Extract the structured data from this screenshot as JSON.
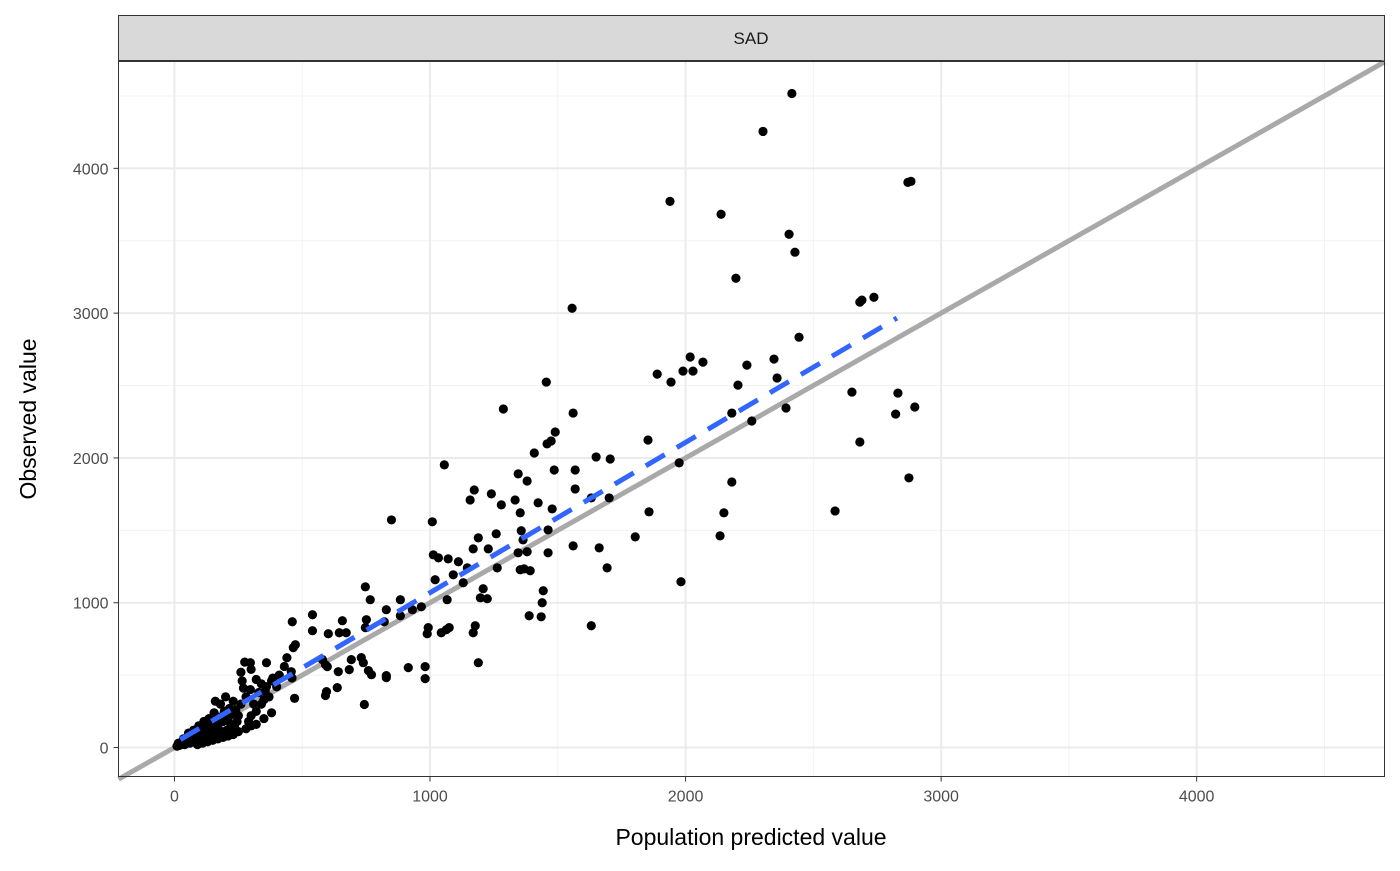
{
  "chart_data": {
    "type": "scatter",
    "facet_label": "SAD",
    "xlabel": "Population predicted value",
    "ylabel": "Observed value",
    "xlim": [
      -219,
      4735
    ],
    "ylim": [
      -200,
      4738
    ],
    "x_ticks": [
      0,
      1000,
      2000,
      3000,
      4000
    ],
    "y_ticks": [
      0,
      1000,
      2000,
      3000,
      4000
    ],
    "x_tick_labels": [
      "0",
      "1000",
      "2000",
      "3000",
      "4000"
    ],
    "y_tick_labels": [
      "0",
      "1000",
      "2000",
      "3000",
      "4000"
    ],
    "grid": true,
    "colors": {
      "points": "#000000",
      "identity_line": "#a9a9a9",
      "fit_line": "#3366ff",
      "strip": "#d9d9d9"
    },
    "identity_line": {
      "x": [
        -219,
        4735
      ],
      "y": [
        -219,
        4735
      ]
    },
    "fit_line": {
      "x": [
        23,
        2827
      ],
      "y": [
        55,
        2966
      ],
      "style": "dashed"
    },
    "points": [
      [
        2416,
        4517
      ],
      [
        2303,
        4255
      ],
      [
        2139,
        3683
      ],
      [
        1939,
        3772
      ],
      [
        2870,
        3903
      ],
      [
        2882,
        3910
      ],
      [
        2405,
        3545
      ],
      [
        2428,
        3421
      ],
      [
        2197,
        3241
      ],
      [
        1556,
        3034
      ],
      [
        2737,
        3110
      ],
      [
        2690,
        3090
      ],
      [
        2682,
        3076
      ],
      [
        2444,
        2834
      ],
      [
        2240,
        2641
      ],
      [
        2346,
        2683
      ],
      [
        2018,
        2697
      ],
      [
        2068,
        2662
      ],
      [
        1889,
        2579
      ],
      [
        1990,
        2600
      ],
      [
        2029,
        2600
      ],
      [
        1943,
        2524
      ],
      [
        2205,
        2503
      ],
      [
        2358,
        2552
      ],
      [
        1455,
        2524
      ],
      [
        2651,
        2455
      ],
      [
        2831,
        2448
      ],
      [
        1287,
        2338
      ],
      [
        2897,
        2352
      ],
      [
        2393,
        2345
      ],
      [
        2822,
        2303
      ],
      [
        2181,
        2310
      ],
      [
        2259,
        2255
      ],
      [
        1560,
        2310
      ],
      [
        1490,
        2179
      ],
      [
        1474,
        2117
      ],
      [
        1458,
        2097
      ],
      [
        2682,
        2110
      ],
      [
        1853,
        2124
      ],
      [
        1975,
        1966
      ],
      [
        1056,
        1952
      ],
      [
        1408,
        2034
      ],
      [
        1650,
        2007
      ],
      [
        1705,
        1993
      ],
      [
        1486,
        1917
      ],
      [
        1568,
        1917
      ],
      [
        1345,
        1890
      ],
      [
        2874,
        1862
      ],
      [
        2181,
        1834
      ],
      [
        1380,
        1841
      ],
      [
        1568,
        1786
      ],
      [
        1173,
        1779
      ],
      [
        1157,
        1710
      ],
      [
        1240,
        1752
      ],
      [
        1701,
        1724
      ],
      [
        1631,
        1724
      ],
      [
        1333,
        1710
      ],
      [
        1279,
        1676
      ],
      [
        1423,
        1690
      ],
      [
        1478,
        1648
      ],
      [
        2585,
        1634
      ],
      [
        1857,
        1628
      ],
      [
        2150,
        1621
      ],
      [
        849,
        1572
      ],
      [
        1009,
        1559
      ],
      [
        1353,
        1621
      ],
      [
        1803,
        1455
      ],
      [
        2135,
        1462
      ],
      [
        1560,
        1393
      ],
      [
        1662,
        1379
      ],
      [
        1357,
        1497
      ],
      [
        1364,
        1434
      ],
      [
        1462,
        1503
      ],
      [
        1259,
        1476
      ],
      [
        1189,
        1448
      ],
      [
        1228,
        1372
      ],
      [
        1380,
        1352
      ],
      [
        1345,
        1345
      ],
      [
        1462,
        1345
      ],
      [
        1169,
        1372
      ],
      [
        1013,
        1331
      ],
      [
        1033,
        1310
      ],
      [
        1071,
        1303
      ],
      [
        1111,
        1283
      ],
      [
        1146,
        1241
      ],
      [
        1263,
        1241
      ],
      [
        1693,
        1241
      ],
      [
        1353,
        1228
      ],
      [
        1392,
        1221
      ],
      [
        1368,
        1234
      ],
      [
        1982,
        1145
      ],
      [
        1091,
        1193
      ],
      [
        1020,
        1159
      ],
      [
        1130,
        1138
      ],
      [
        1208,
        1097
      ],
      [
        1224,
        1028
      ],
      [
        1197,
        1034
      ],
      [
        1443,
        1083
      ],
      [
        1439,
        1000
      ],
      [
        1388,
        910
      ],
      [
        1435,
        903
      ],
      [
        1631,
        841
      ],
      [
        1064,
        814
      ],
      [
        1044,
        793
      ],
      [
        1075,
        828
      ],
      [
        1169,
        793
      ],
      [
        1177,
        841
      ],
      [
        884,
        1021
      ],
      [
        931,
        952
      ],
      [
        966,
        972
      ],
      [
        993,
        828
      ],
      [
        989,
        786
      ],
      [
        1067,
        1021
      ],
      [
        747,
        1110
      ],
      [
        766,
        1021
      ],
      [
        829,
        952
      ],
      [
        821,
        869
      ],
      [
        884,
        910
      ],
      [
        1189,
        586
      ],
      [
        915,
        552
      ],
      [
        981,
        559
      ],
      [
        981,
        476
      ],
      [
        751,
        883
      ],
      [
        747,
        828
      ],
      [
        657,
        876
      ],
      [
        645,
        793
      ],
      [
        672,
        793
      ],
      [
        540,
        917
      ],
      [
        540,
        807
      ],
      [
        602,
        786
      ],
      [
        579,
        607
      ],
      [
        591,
        572
      ],
      [
        692,
        607
      ],
      [
        684,
        538
      ],
      [
        731,
        621
      ],
      [
        739,
        586
      ],
      [
        743,
        297
      ],
      [
        829,
        497
      ],
      [
        829,
        483
      ],
      [
        759,
        531
      ],
      [
        771,
        503
      ],
      [
        641,
        524
      ],
      [
        598,
        559
      ],
      [
        637,
        414
      ],
      [
        591,
        359
      ],
      [
        595,
        386
      ],
      [
        461,
        869
      ],
      [
        465,
        690
      ],
      [
        473,
        710
      ],
      [
        457,
        524
      ],
      [
        360,
        586
      ],
      [
        297,
        586
      ],
      [
        297,
        400
      ],
      [
        400,
        420
      ],
      [
        380,
        460
      ],
      [
        360,
        420
      ],
      [
        350,
        330
      ],
      [
        340,
        300
      ],
      [
        330,
        380
      ],
      [
        320,
        250
      ],
      [
        310,
        300
      ],
      [
        300,
        220
      ],
      [
        290,
        180
      ],
      [
        280,
        350
      ],
      [
        270,
        410
      ],
      [
        265,
        460
      ],
      [
        260,
        300
      ],
      [
        250,
        220
      ],
      [
        245,
        180
      ],
      [
        240,
        260
      ],
      [
        235,
        140
      ],
      [
        230,
        320
      ],
      [
        225,
        230
      ],
      [
        220,
        160
      ],
      [
        215,
        270
      ],
      [
        210,
        200
      ],
      [
        205,
        120
      ],
      [
        200,
        350
      ],
      [
        195,
        250
      ],
      [
        190,
        180
      ],
      [
        185,
        110
      ],
      [
        180,
        300
      ],
      [
        175,
        210
      ],
      [
        170,
        150
      ],
      [
        165,
        90
      ],
      [
        160,
        320
      ],
      [
        155,
        240
      ],
      [
        150,
        170
      ],
      [
        145,
        120
      ],
      [
        140,
        70
      ],
      [
        135,
        200
      ],
      [
        130,
        150
      ],
      [
        125,
        100
      ],
      [
        120,
        60
      ],
      [
        115,
        180
      ],
      [
        110,
        130
      ],
      [
        105,
        90
      ],
      [
        100,
        50
      ],
      [
        95,
        150
      ],
      [
        90,
        110
      ],
      [
        85,
        70
      ],
      [
        80,
        40
      ],
      [
        75,
        120
      ],
      [
        70,
        90
      ],
      [
        65,
        60
      ],
      [
        60,
        30
      ],
      [
        55,
        100
      ],
      [
        50,
        70
      ],
      [
        45,
        40
      ],
      [
        40,
        20
      ],
      [
        35,
        60
      ],
      [
        30,
        40
      ],
      [
        25,
        25
      ],
      [
        20,
        15
      ],
      [
        15,
        30
      ],
      [
        10,
        10
      ],
      [
        260,
        520
      ],
      [
        275,
        590
      ],
      [
        300,
        540
      ],
      [
        320,
        470
      ],
      [
        340,
        440
      ],
      [
        355,
        390
      ],
      [
        370,
        350
      ],
      [
        385,
        480
      ],
      [
        410,
        500
      ],
      [
        430,
        560
      ],
      [
        440,
        620
      ],
      [
        460,
        480
      ],
      [
        470,
        340
      ],
      [
        380,
        240
      ],
      [
        350,
        200
      ],
      [
        320,
        160
      ],
      [
        300,
        150
      ],
      [
        280,
        130
      ],
      [
        250,
        110
      ],
      [
        230,
        90
      ],
      [
        210,
        80
      ],
      [
        190,
        70
      ],
      [
        170,
        60
      ],
      [
        150,
        50
      ],
      [
        130,
        40
      ],
      [
        110,
        30
      ],
      [
        90,
        20
      ]
    ]
  }
}
